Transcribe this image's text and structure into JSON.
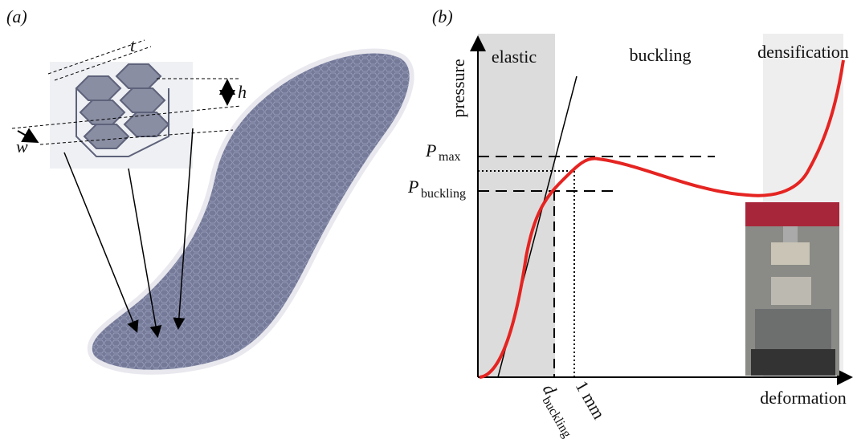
{
  "panel_a": {
    "label": "(a)",
    "dimensions": {
      "t": "t",
      "h": "h",
      "w": "w"
    }
  },
  "panel_b": {
    "label": "(b)",
    "regions": [
      "elastic",
      "buckling",
      "densification"
    ],
    "y_axis_label": "pressure",
    "x_axis_label": "deformation",
    "p_max": {
      "symbol": "P",
      "subscript": "max"
    },
    "p_buckling": {
      "symbol": "P",
      "subscript": "buckling"
    },
    "d_buckling": {
      "symbol": "d",
      "subscript": "buckling"
    },
    "one_mm": "1 mm"
  }
}
